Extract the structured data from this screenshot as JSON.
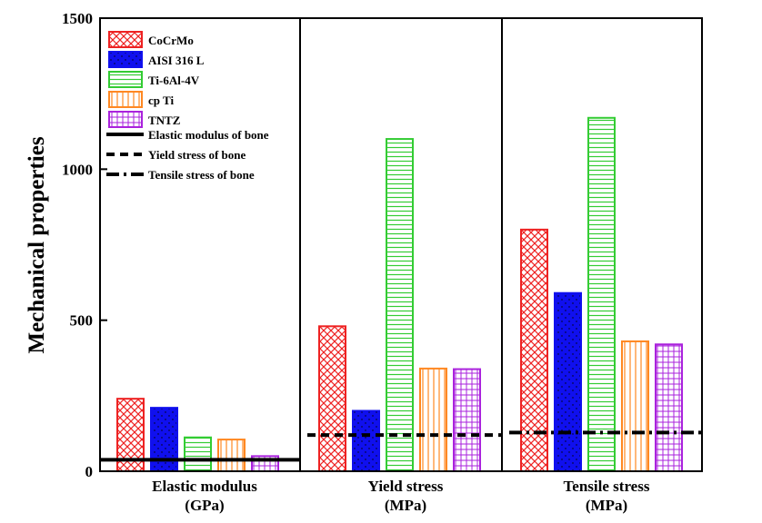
{
  "chart_data": {
    "type": "bar",
    "ylabel": "Mechanical properties",
    "xlabel": "",
    "ylim": [
      0,
      1500
    ],
    "yticks": [
      0,
      500,
      1000,
      1500
    ],
    "grid": false,
    "legend_position": "top-left",
    "groups": [
      {
        "label_line1": "Elastic modulus",
        "label_line2": "(GPa)"
      },
      {
        "label_line1": "Yield stress",
        "label_line2": "(MPa)"
      },
      {
        "label_line1": "Tensile stress",
        "label_line2": "(MPa)"
      }
    ],
    "series": [
      {
        "name": "CoCrMo",
        "color": "#ee2222",
        "pattern": "crosshatch",
        "values": [
          240,
          480,
          800
        ]
      },
      {
        "name": "AISI 316 L",
        "color": "#1010ee",
        "pattern": "dots",
        "values": [
          210,
          200,
          590
        ]
      },
      {
        "name": "Ti-6Al-4V",
        "color": "#33cc33",
        "pattern": "horizontal",
        "values": [
          112,
          1100,
          1170
        ]
      },
      {
        "name": "cp Ti",
        "color": "#ff8822",
        "pattern": "vertical",
        "values": [
          105,
          340,
          430
        ]
      },
      {
        "name": "TNTZ",
        "color": "#aa22dd",
        "pattern": "grid",
        "values": [
          50,
          338,
          420
        ]
      }
    ],
    "reference_lines": [
      {
        "name": "Elastic modulus of bone",
        "style": "solid",
        "value": 38,
        "group": 0
      },
      {
        "name": "Yield stress of bone",
        "style": "dashed",
        "value": 120,
        "group": 1
      },
      {
        "name": "Tensile stress of bone",
        "style": "dashdot",
        "value": 128,
        "group": 2
      }
    ]
  }
}
